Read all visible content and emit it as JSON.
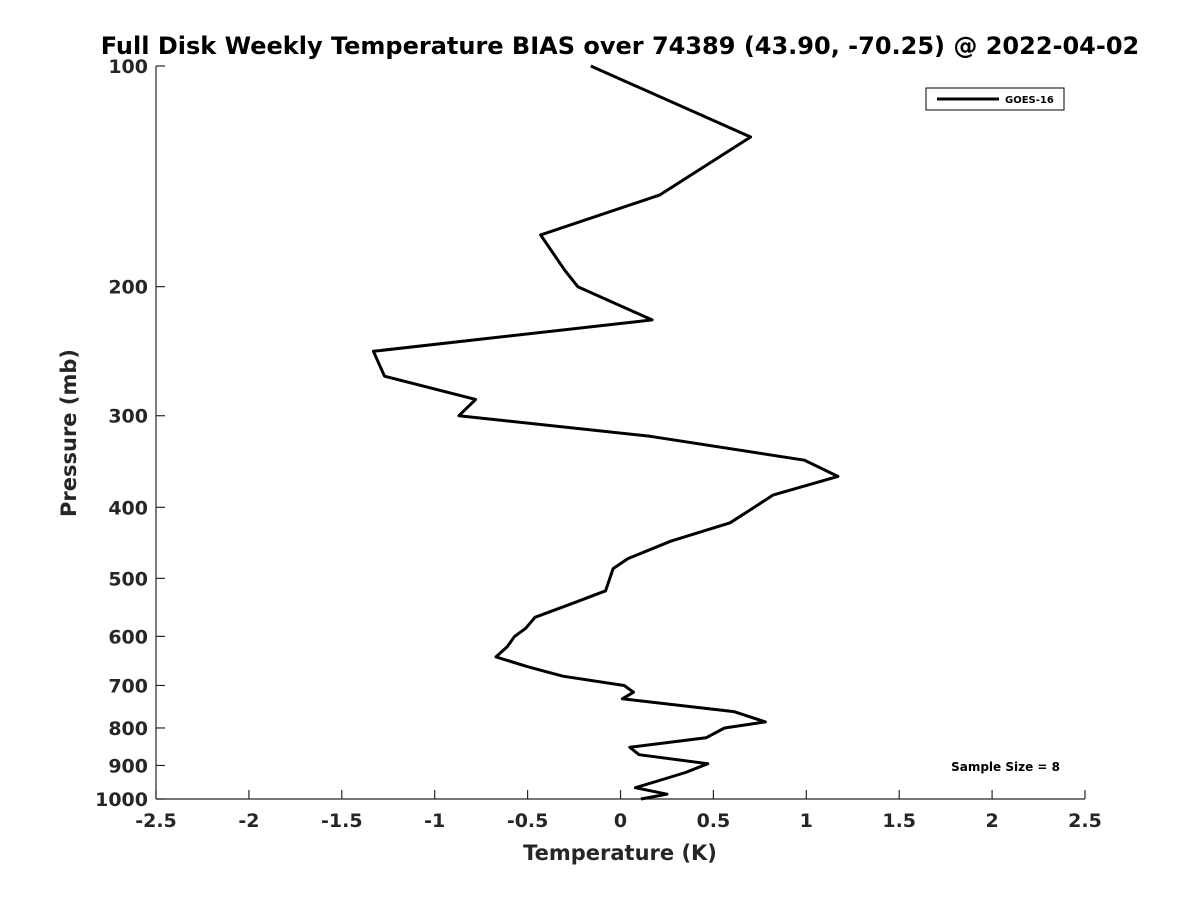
{
  "chart_data": {
    "type": "line",
    "title": "Full Disk Weekly Temperature BIAS over 74389 (43.90, -70.25) @ 2022-04-02",
    "xlabel": "Temperature (K)",
    "ylabel": "Pressure (mb)",
    "xlim": [
      -2.5,
      2.5
    ],
    "ylim": [
      100,
      1000
    ],
    "y_scale": "log",
    "y_reversed": true,
    "x_ticks": [
      "-2.5",
      "-2",
      "-1.5",
      "-1",
      "-0.5",
      "0",
      "0.5",
      "1",
      "1.5",
      "2",
      "2.5"
    ],
    "y_ticks": [
      "100",
      "200",
      "300",
      "400",
      "500",
      "600",
      "700",
      "800",
      "900",
      "1000"
    ],
    "grid": false,
    "legend": {
      "position": "top-right",
      "entries": [
        "GOES-16"
      ]
    },
    "annotation": "Sample Size = 8",
    "line_color": "#000000",
    "series": [
      {
        "name": "GOES-16",
        "points": [
          {
            "x": -0.16,
            "p": 100
          },
          {
            "x": 0.7,
            "p": 125
          },
          {
            "x": 0.21,
            "p": 150
          },
          {
            "x": -0.43,
            "p": 170
          },
          {
            "x": -0.3,
            "p": 190
          },
          {
            "x": -0.23,
            "p": 200
          },
          {
            "x": 0.17,
            "p": 222
          },
          {
            "x": -1.33,
            "p": 245
          },
          {
            "x": -1.27,
            "p": 265
          },
          {
            "x": -0.78,
            "p": 285
          },
          {
            "x": -0.87,
            "p": 300
          },
          {
            "x": 0.16,
            "p": 320
          },
          {
            "x": 0.99,
            "p": 345
          },
          {
            "x": 1.17,
            "p": 363
          },
          {
            "x": 0.82,
            "p": 385
          },
          {
            "x": 0.72,
            "p": 400
          },
          {
            "x": 0.59,
            "p": 420
          },
          {
            "x": 0.27,
            "p": 445
          },
          {
            "x": 0.04,
            "p": 470
          },
          {
            "x": -0.04,
            "p": 485
          },
          {
            "x": -0.08,
            "p": 520
          },
          {
            "x": -0.25,
            "p": 540
          },
          {
            "x": -0.46,
            "p": 565
          },
          {
            "x": -0.51,
            "p": 585
          },
          {
            "x": -0.57,
            "p": 600
          },
          {
            "x": -0.61,
            "p": 620
          },
          {
            "x": -0.67,
            "p": 640
          },
          {
            "x": -0.5,
            "p": 660
          },
          {
            "x": -0.31,
            "p": 680
          },
          {
            "x": 0.02,
            "p": 700
          },
          {
            "x": 0.07,
            "p": 715
          },
          {
            "x": 0.01,
            "p": 730
          },
          {
            "x": 0.61,
            "p": 760
          },
          {
            "x": 0.78,
            "p": 785
          },
          {
            "x": 0.56,
            "p": 800
          },
          {
            "x": 0.46,
            "p": 825
          },
          {
            "x": 0.05,
            "p": 850
          },
          {
            "x": 0.1,
            "p": 870
          },
          {
            "x": 0.47,
            "p": 895
          },
          {
            "x": 0.35,
            "p": 920
          },
          {
            "x": 0.2,
            "p": 945
          },
          {
            "x": 0.08,
            "p": 965
          },
          {
            "x": 0.25,
            "p": 985
          },
          {
            "x": 0.11,
            "p": 1000
          }
        ]
      }
    ]
  }
}
